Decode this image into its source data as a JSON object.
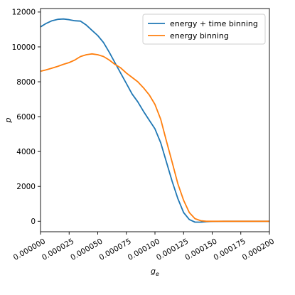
{
  "chart_data": {
    "type": "line",
    "title": "",
    "xlabel": "g_e",
    "ylabel": "p",
    "xlim": [
      0,
      0.0002
    ],
    "ylim": [
      -600,
      12200
    ],
    "grid": false,
    "legend_position": "top-right",
    "x_ticks": [
      {
        "value": 0,
        "label": "0.000000"
      },
      {
        "value": 2.5e-05,
        "label": "0.000025"
      },
      {
        "value": 5e-05,
        "label": "0.000050"
      },
      {
        "value": 7.5e-05,
        "label": "0.000075"
      },
      {
        "value": 0.0001,
        "label": "0.000100"
      },
      {
        "value": 0.000125,
        "label": "0.000125"
      },
      {
        "value": 0.00015,
        "label": "0.000150"
      },
      {
        "value": 0.000175,
        "label": "0.000175"
      },
      {
        "value": 0.0002,
        "label": "0.000200"
      }
    ],
    "y_ticks": [
      {
        "value": 0,
        "label": "0"
      },
      {
        "value": 2000,
        "label": "2000"
      },
      {
        "value": 4000,
        "label": "4000"
      },
      {
        "value": 6000,
        "label": "6000"
      },
      {
        "value": 8000,
        "label": "8000"
      },
      {
        "value": 10000,
        "label": "10000"
      },
      {
        "value": 12000,
        "label": "12000"
      }
    ],
    "series": [
      {
        "name": "energy + time binning",
        "color": "#1f77b4",
        "x": [
          0,
          5e-06,
          1e-05,
          1.5e-05,
          2e-05,
          2.5e-05,
          3e-05,
          3.5e-05,
          4e-05,
          4.5e-05,
          5e-05,
          5.5e-05,
          6e-05,
          6.5e-05,
          7e-05,
          7.5e-05,
          8e-05,
          8.5e-05,
          9e-05,
          9.5e-05,
          0.0001,
          0.000105,
          0.00011,
          0.000115,
          0.00012,
          0.000125,
          0.00013,
          0.000135,
          0.00014,
          0.000145,
          0.00015,
          0.00016,
          0.00017,
          0.00018,
          0.00019,
          0.0002
        ],
        "y": [
          11150,
          11350,
          11500,
          11580,
          11600,
          11560,
          11500,
          11480,
          11250,
          10950,
          10650,
          10250,
          9700,
          9100,
          8500,
          7900,
          7300,
          6850,
          6300,
          5800,
          5300,
          4500,
          3400,
          2300,
          1300,
          500,
          100,
          -50,
          -50,
          -20,
          -10,
          0,
          0,
          0,
          0,
          0
        ]
      },
      {
        "name": "energy binning",
        "color": "#ff7f0e",
        "x": [
          0,
          5e-06,
          1e-05,
          1.5e-05,
          2e-05,
          2.5e-05,
          3e-05,
          3.5e-05,
          4e-05,
          4.5e-05,
          5e-05,
          5.5e-05,
          6e-05,
          6.5e-05,
          7e-05,
          7.5e-05,
          8e-05,
          8.5e-05,
          9e-05,
          9.5e-05,
          0.0001,
          0.000105,
          0.00011,
          0.000115,
          0.00012,
          0.000125,
          0.00013,
          0.000135,
          0.00014,
          0.000145,
          0.00015,
          0.00016,
          0.00017,
          0.00018,
          0.00019,
          0.0002
        ],
        "y": [
          8600,
          8680,
          8780,
          8880,
          9000,
          9100,
          9250,
          9450,
          9550,
          9600,
          9550,
          9450,
          9250,
          9000,
          8800,
          8500,
          8250,
          8000,
          7650,
          7250,
          6700,
          5850,
          4600,
          3400,
          2150,
          1200,
          500,
          150,
          30,
          0,
          0,
          0,
          0,
          0,
          0,
          0
        ]
      }
    ]
  }
}
